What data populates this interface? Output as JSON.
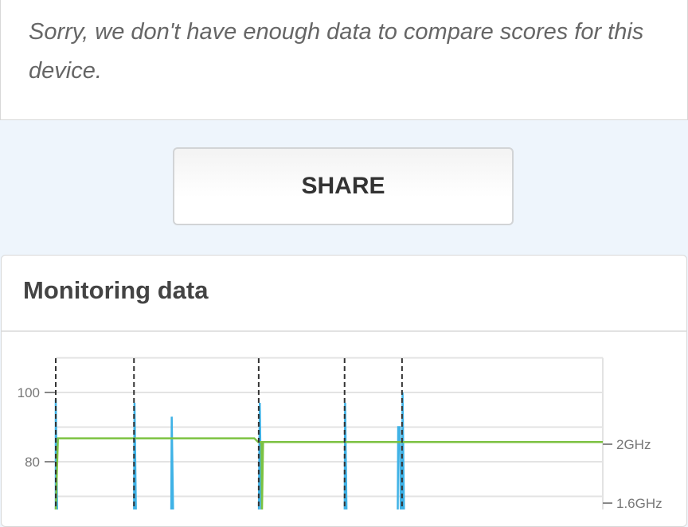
{
  "message": "Sorry, we don't have enough data to compare scores for this device.",
  "share_label": "SHARE",
  "monitoring": {
    "title": "Monitoring data"
  },
  "colors": {
    "background": "#eef5fc",
    "score_line": "#3fb2e6",
    "frequency_line": "#7cc242",
    "marker": "#333333"
  },
  "chart_data": {
    "type": "line",
    "left_axis": {
      "ticks": [
        {
          "value": 100,
          "label": "100"
        },
        {
          "value": 80,
          "label": "80"
        }
      ],
      "gridlines": [
        110,
        100,
        90,
        80,
        70
      ]
    },
    "right_axis": {
      "ticks": [
        {
          "value": 2.0,
          "label": "2GHz"
        },
        {
          "value": 1.6,
          "label": "1.6GHz"
        }
      ]
    },
    "grid": true,
    "markers_x": [
      0,
      14.3,
      37.1,
      52.8,
      63.3
    ],
    "series": [
      {
        "axis": "left",
        "color": "#3fb2e6",
        "points": [
          [
            0,
            60
          ],
          [
            0,
            98
          ],
          [
            0.3,
            60
          ],
          [
            14.3,
            60
          ],
          [
            14.4,
            97
          ],
          [
            14.7,
            60
          ],
          [
            21.1,
            60
          ],
          [
            21.2,
            93
          ],
          [
            21.5,
            60
          ],
          [
            37.1,
            60
          ],
          [
            37.3,
            97
          ],
          [
            37.6,
            60
          ],
          [
            52.8,
            60
          ],
          [
            52.9,
            97
          ],
          [
            53.2,
            60
          ],
          [
            62.5,
            60
          ],
          [
            62.6,
            90
          ],
          [
            62.9,
            90
          ],
          [
            63.1,
            60
          ],
          [
            63.3,
            60
          ],
          [
            63.4,
            100
          ],
          [
            63.7,
            60
          ]
        ]
      },
      {
        "axis": "right",
        "color": "#7cc242",
        "points": [
          [
            0,
            1.55
          ],
          [
            0.4,
            2.04
          ],
          [
            36.3,
            2.04
          ],
          [
            37.0,
            2.015
          ],
          [
            37.6,
            2.015
          ],
          [
            37.7,
            1.55
          ],
          [
            37.9,
            2.015
          ],
          [
            100,
            2.015
          ]
        ]
      }
    ]
  }
}
